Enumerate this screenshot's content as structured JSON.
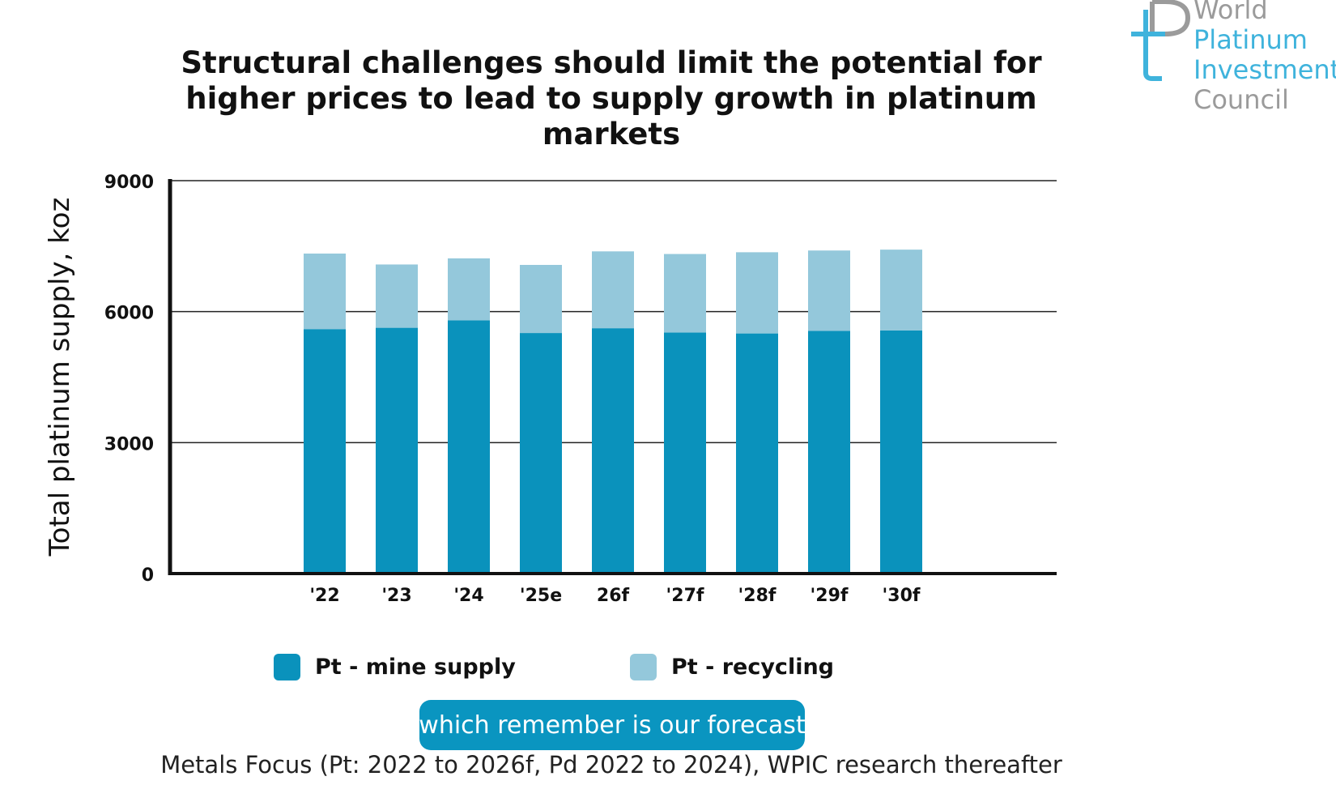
{
  "title_line1": "Structural challenges should limit the potential for",
  "title_line2": "higher prices to lead to supply growth in platinum markets",
  "logo": {
    "line1": "World",
    "line2": "Platinum",
    "line3": "Investment",
    "line4": "Council",
    "grey_color": "#9b9b9b",
    "blue_color": "#3fb3dc"
  },
  "caption": "which remember is our forecast",
  "source": "Metals Focus (Pt: 2022 to 2026f, Pd 2022 to 2024), WPIC research thereafter",
  "colors": {
    "mine_supply": "#0a92bc",
    "recycling": "#94c8db",
    "caption_bg": "#0a95c0"
  },
  "chart_data": {
    "type": "bar",
    "stacked": true,
    "title": "Structural challenges should limit the potential for higher prices to lead to supply growth in platinum markets",
    "ylabel": "Total platinum supply, koz",
    "xlabel": "",
    "ylim": [
      0,
      9000
    ],
    "yticks": [
      0,
      3000,
      6000,
      9000
    ],
    "grid": true,
    "legend_position": "bottom",
    "categories": [
      "'22",
      "'23",
      "'24",
      "'25e",
      "26f",
      "'27f",
      "'28f",
      "'29f",
      "'30f"
    ],
    "series": [
      {
        "name": "Pt - mine supply",
        "color": "#0a92bc",
        "values": [
          5600,
          5630,
          5800,
          5510,
          5620,
          5520,
          5500,
          5560,
          5570
        ]
      },
      {
        "name": "Pt - recycling",
        "color": "#94c8db",
        "values": [
          1730,
          1450,
          1420,
          1560,
          1760,
          1800,
          1860,
          1840,
          1850
        ]
      }
    ]
  }
}
